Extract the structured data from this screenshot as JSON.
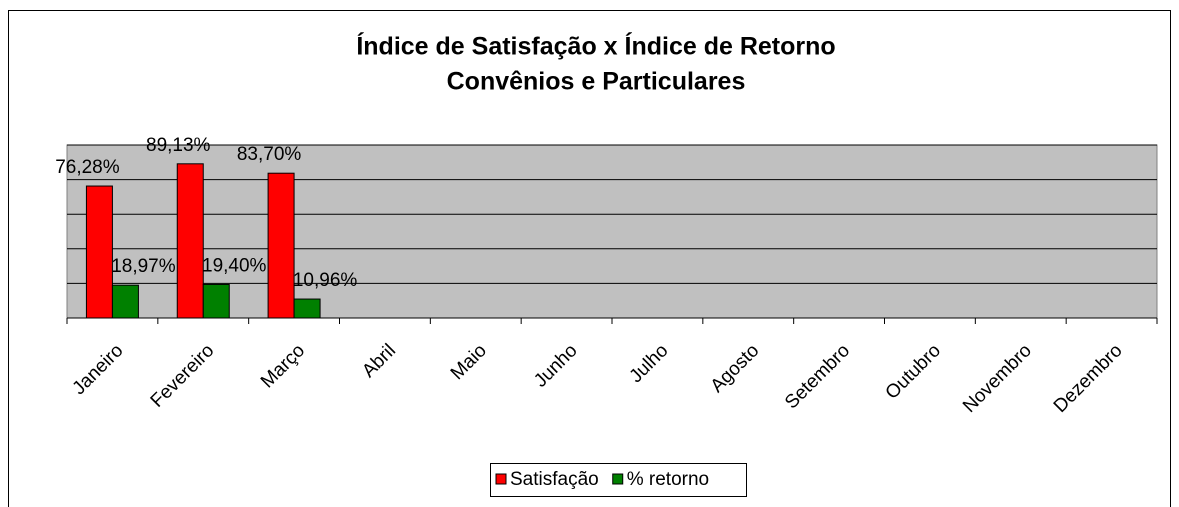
{
  "chart_data": {
    "type": "bar",
    "title": [
      "Índice de Satisfação x Índice de Retorno",
      "Convênios e Particulares"
    ],
    "categories": [
      "Janeiro",
      "Fevereiro",
      "Março",
      "Abril",
      "Maio",
      "Junho",
      "Julho",
      "Agosto",
      "Setembro",
      "Outubro",
      "Novembro",
      "Dezembro"
    ],
    "series": [
      {
        "name": "Satisfação",
        "color": "#ff0000",
        "values": [
          76.28,
          89.13,
          83.7,
          null,
          null,
          null,
          null,
          null,
          null,
          null,
          null,
          null
        ],
        "value_labels": [
          "76,28%",
          "89,13%",
          "83,70%",
          null,
          null,
          null,
          null,
          null,
          null,
          null,
          null,
          null
        ]
      },
      {
        "name": "% retorno",
        "color": "#008000",
        "values": [
          18.97,
          19.4,
          10.96,
          null,
          null,
          null,
          null,
          null,
          null,
          null,
          null,
          null
        ],
        "value_labels": [
          "18,97%",
          "19,40%",
          "10,96%",
          null,
          null,
          null,
          null,
          null,
          null,
          null,
          null,
          null
        ]
      }
    ],
    "ylim": [
      0,
      100
    ],
    "yticks": [
      0,
      20,
      40,
      60,
      80,
      100
    ],
    "grid": true,
    "legend": "bottom"
  }
}
